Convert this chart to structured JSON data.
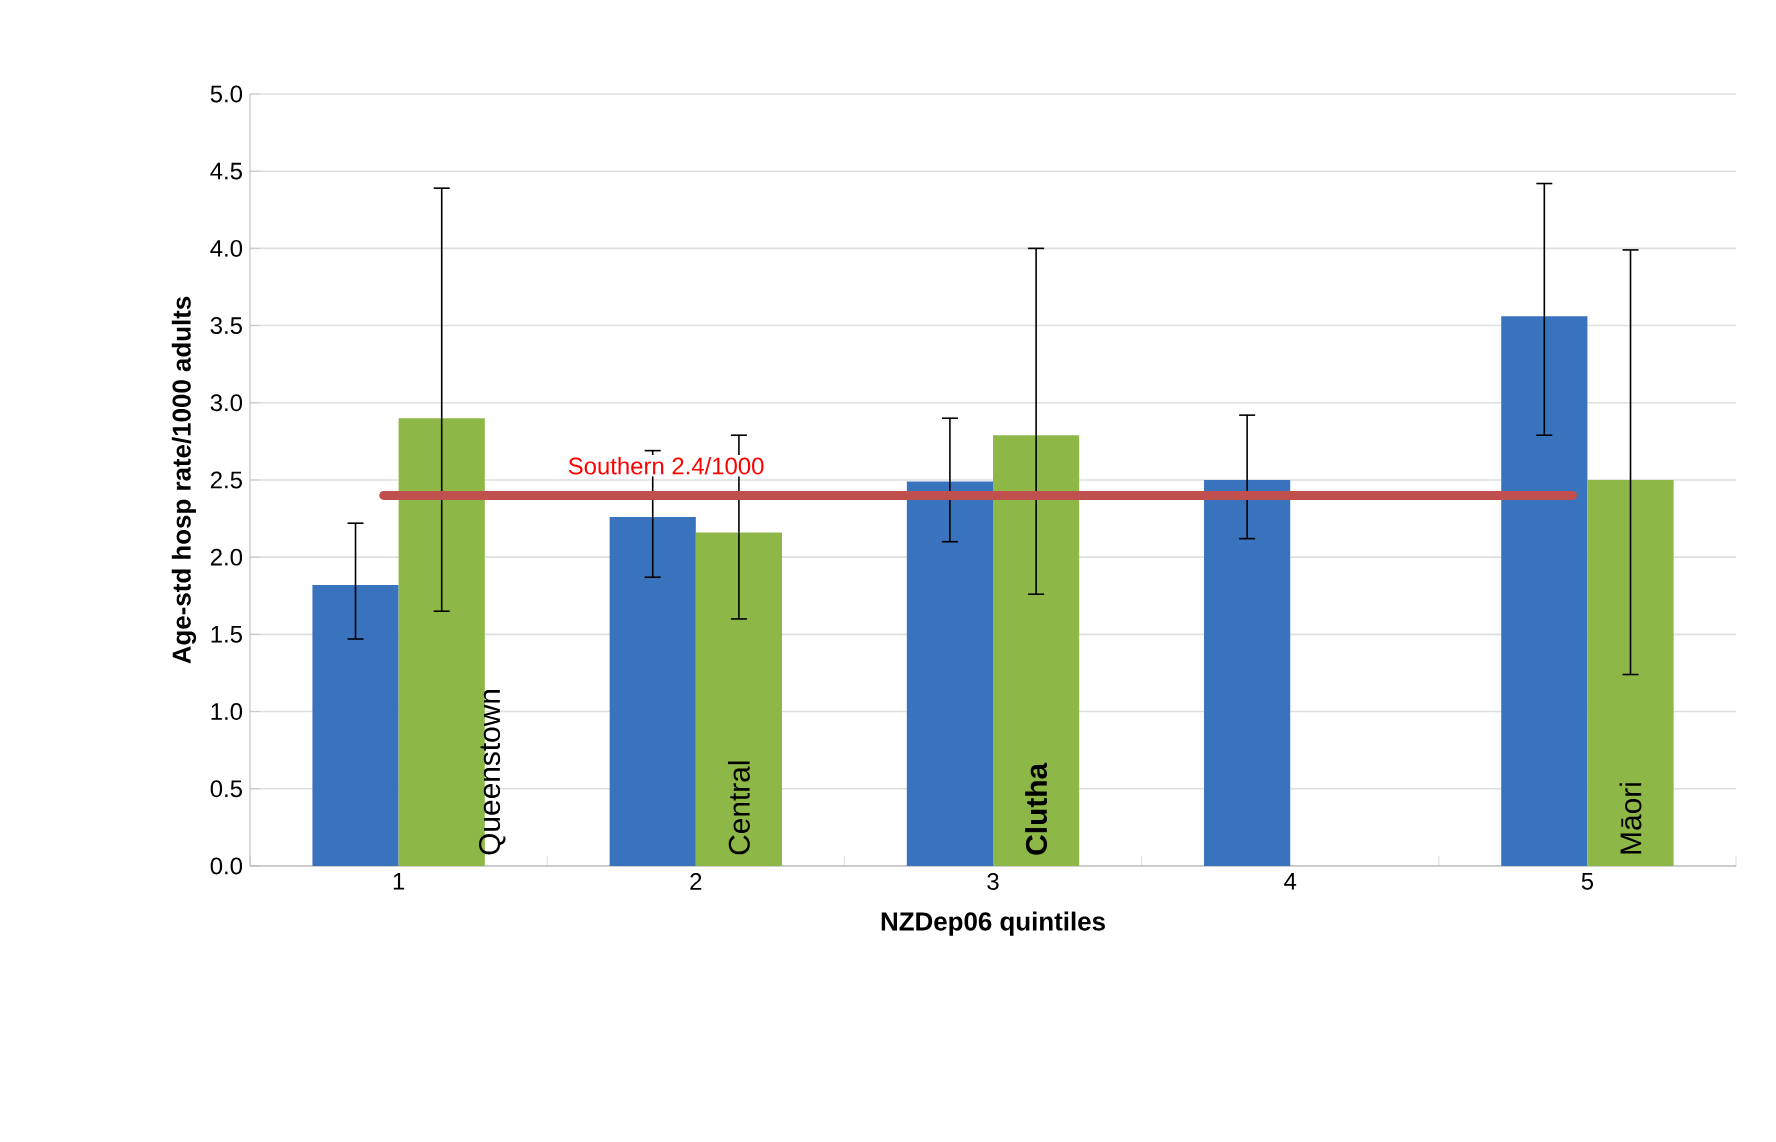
{
  "chart_data": {
    "type": "bar",
    "xlabel": "NZDep06 quintiles",
    "ylabel": "Age-std hosp rate/1000 adults",
    "categories": [
      "1",
      "2",
      "3",
      "4",
      "5"
    ],
    "series": [
      {
        "color": "#3a73bd",
        "values": [
          1.82,
          2.26,
          2.49,
          2.5,
          3.56
        ],
        "errors": [
          [
            1.47,
            2.22
          ],
          [
            1.87,
            2.69
          ],
          [
            2.1,
            2.9
          ],
          [
            2.12,
            2.92
          ],
          [
            2.79,
            4.42
          ]
        ]
      },
      {
        "color": "#8db847",
        "values": [
          2.9,
          2.16,
          2.79,
          null,
          2.5
        ],
        "errors": [
          [
            1.65,
            4.39
          ],
          [
            1.6,
            2.79
          ],
          [
            1.76,
            4.0
          ],
          null,
          [
            1.24,
            3.99
          ]
        ]
      }
    ],
    "ylim": [
      0,
      5
    ],
    "yticks": [
      {
        "value": 0,
        "label": "0.0"
      },
      {
        "value": 0.5,
        "label": "0.5"
      },
      {
        "value": 1,
        "label": "1.0"
      },
      {
        "value": 1.5,
        "label": "1.5"
      },
      {
        "value": 2,
        "label": "2.0"
      },
      {
        "value": 2.5,
        "label": "2.5"
      },
      {
        "value": 3,
        "label": "3.0"
      },
      {
        "value": 3.5,
        "label": "3.5"
      },
      {
        "value": 4,
        "label": "4.0"
      },
      {
        "value": 4.5,
        "label": "4.5"
      },
      {
        "value": 5,
        "label": "5.0"
      }
    ],
    "grid": "y",
    "ref_lines": [
      {
        "axis": "y",
        "value": 2.4,
        "label": "Southern 2.4/1000",
        "color": "#c0504d"
      }
    ],
    "annotations": [
      {
        "text": "Queenstown",
        "x": "1",
        "y": 0
      },
      {
        "text": "Central",
        "x": "2",
        "y": 0
      },
      {
        "text": "**Clutha**",
        "x": "3",
        "y": 0
      },
      {
        "text": "Māori",
        "x": "5",
        "y": 0
      }
    ]
  }
}
